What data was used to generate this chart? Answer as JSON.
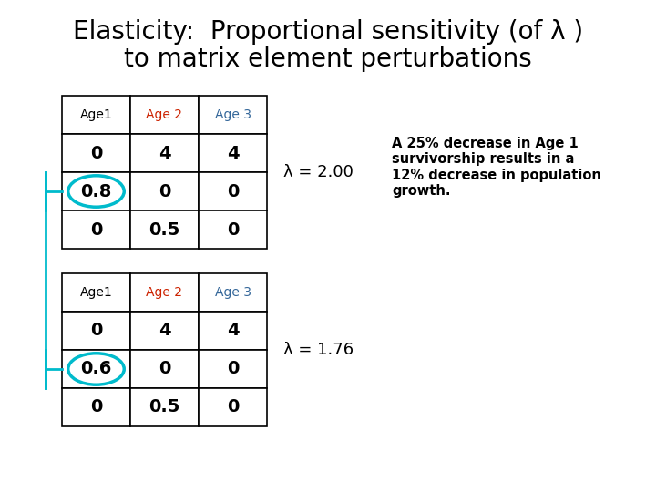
{
  "title_line1": "Elasticity:  Proportional sensitivity (of λ )",
  "title_line2": "to matrix element perturbations",
  "title_fontsize": 20,
  "bg_color": "#ffffff",
  "table1": {
    "headers": [
      "Age1",
      "Age 2",
      "Age 3"
    ],
    "header_colors": [
      "#000000",
      "#cc2200",
      "#336699"
    ],
    "rows": [
      [
        "0",
        "4",
        "4"
      ],
      [
        "0.8",
        "0",
        "0"
      ],
      [
        "0",
        "0.5",
        "0"
      ]
    ],
    "circle_row": 1,
    "circle_col": 0,
    "circle_color": "#00bbcc",
    "lambda_text": "λ = 2.00"
  },
  "table2": {
    "headers": [
      "Age1",
      "Age 2",
      "Age 3"
    ],
    "header_colors": [
      "#000000",
      "#cc2200",
      "#336699"
    ],
    "rows": [
      [
        "0",
        "4",
        "4"
      ],
      [
        "0.6",
        "0",
        "0"
      ],
      [
        "0",
        "0.5",
        "0"
      ]
    ],
    "circle_row": 1,
    "circle_col": 0,
    "circle_color": "#00bbcc",
    "lambda_text": "λ = 1.76"
  },
  "annotation": "A 25% decrease in Age 1\nsurvivorship results in a\n12% decrease in population\ngrowth.",
  "annotation_fontsize": 10.5,
  "annotation_fontweight": "bold",
  "bracket_color": "#00bbcc",
  "bracket_lw": 2.0,
  "header_fontsize": 10,
  "cell_fontsize": 14,
  "lambda_fontsize": 13
}
